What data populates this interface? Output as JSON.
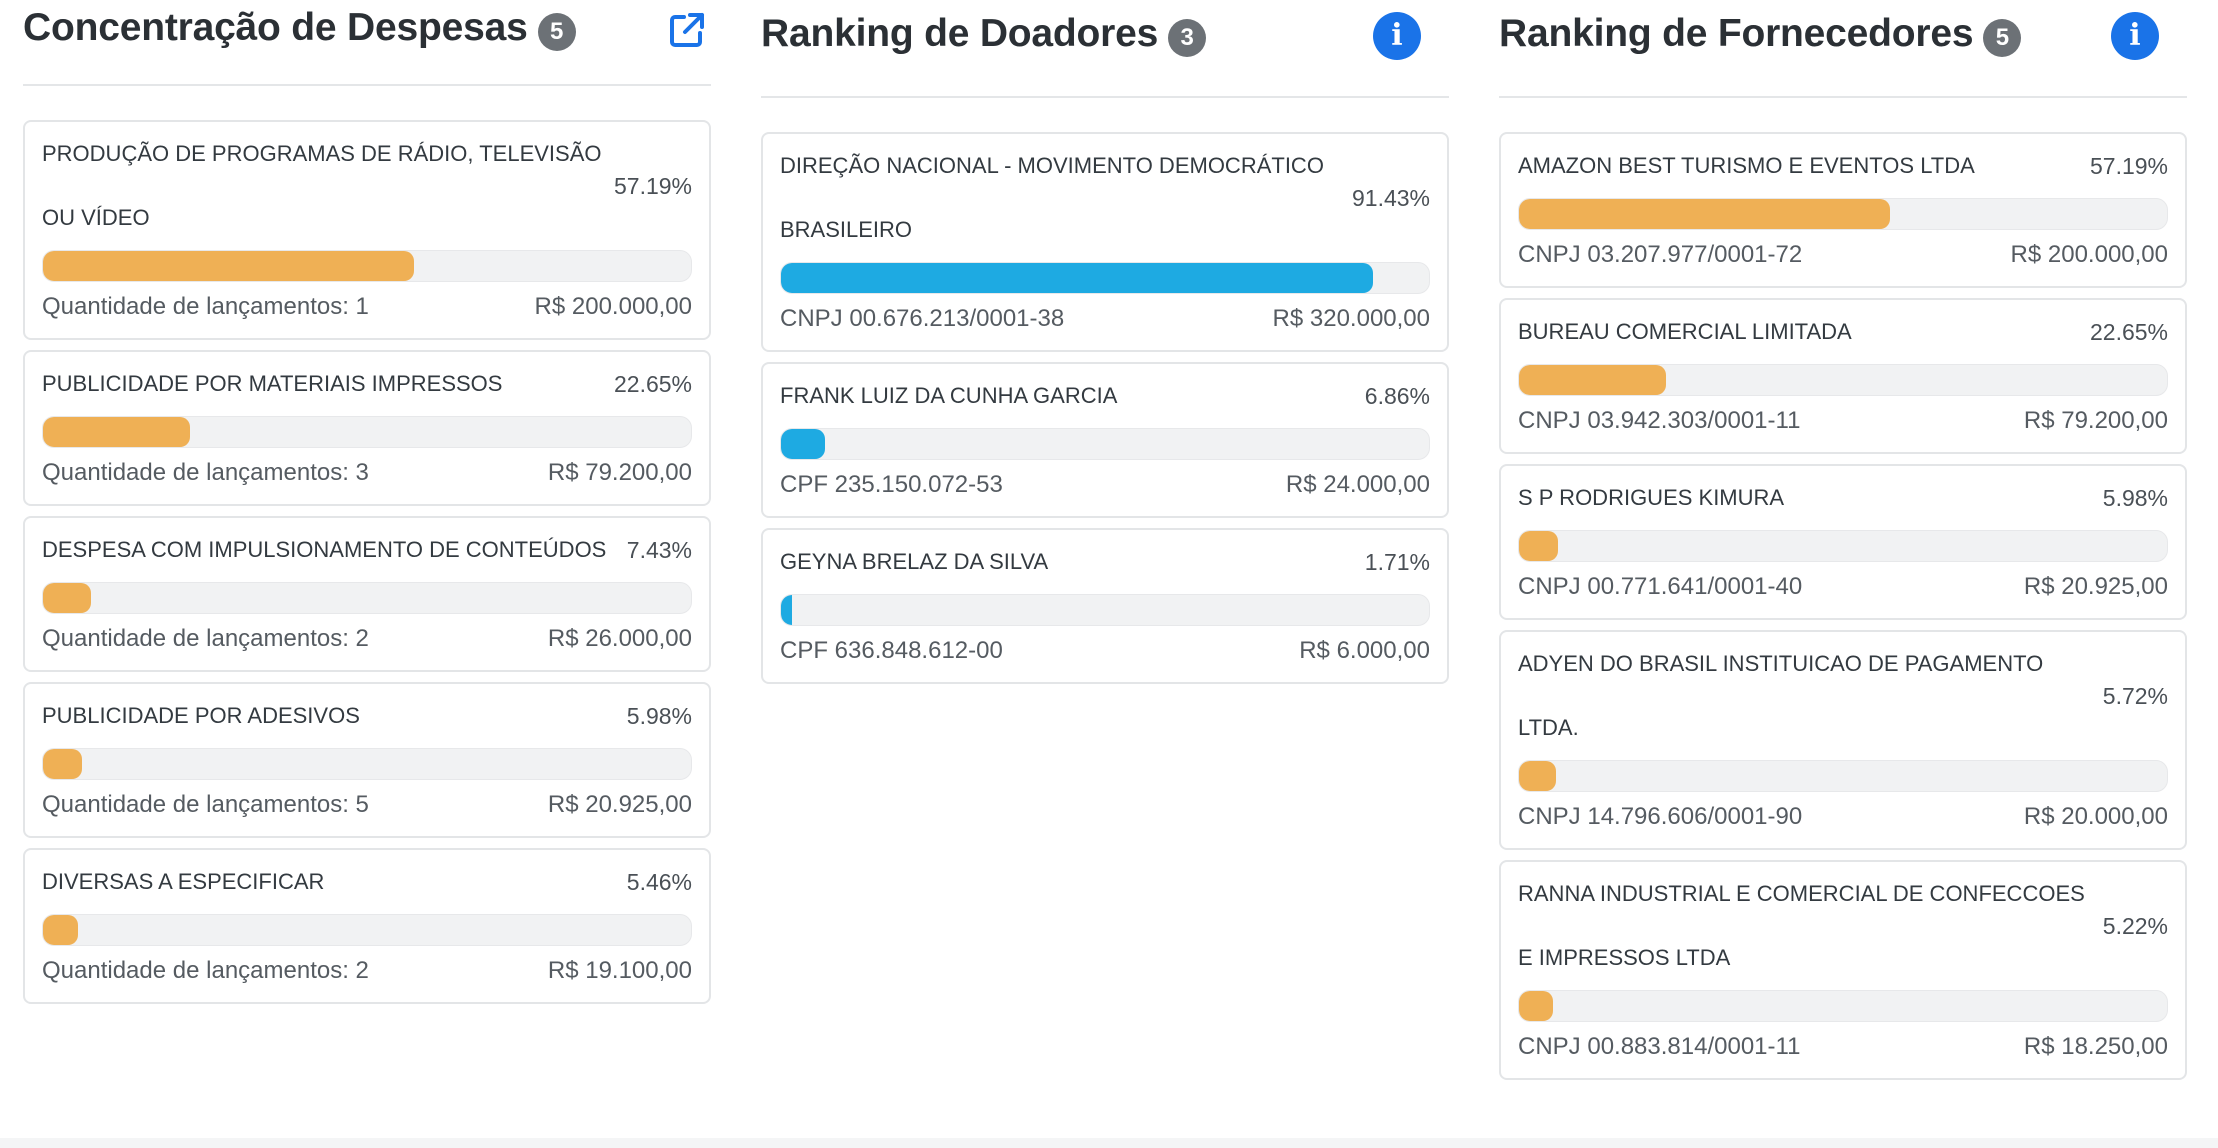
{
  "columns": [
    {
      "title": "Concentração de Despesas",
      "count": "5",
      "icon": "external-link-icon",
      "items": [
        {
          "name": "PRODUÇÃO DE PROGRAMAS DE RÁDIO, TELEVISÃO OU VÍDEO",
          "pct": "57.19%",
          "fraction": 0.5719,
          "left": "Quantidade de lançamentos: 1",
          "right": "R$ 200.000,00"
        },
        {
          "name": "PUBLICIDADE POR MATERIAIS IMPRESSOS",
          "pct": "22.65%",
          "fraction": 0.2265,
          "left": "Quantidade de lançamentos: 3",
          "right": "R$ 79.200,00"
        },
        {
          "name": "DESPESA COM IMPULSIONAMENTO DE CONTEÚDOS",
          "pct": "7.43%",
          "fraction": 0.0743,
          "left": "Quantidade de lançamentos: 2",
          "right": "R$ 26.000,00"
        },
        {
          "name": "PUBLICIDADE POR ADESIVOS",
          "pct": "5.98%",
          "fraction": 0.0598,
          "left": "Quantidade de lançamentos: 5",
          "right": "R$ 20.925,00"
        },
        {
          "name": "DIVERSAS A ESPECIFICAR",
          "pct": "5.46%",
          "fraction": 0.0546,
          "left": "Quantidade de lançamentos: 2",
          "right": "R$ 19.100,00"
        }
      ]
    },
    {
      "title": "Ranking de Doadores",
      "count": "3",
      "icon": "info-icon",
      "items": [
        {
          "name": "DIREÇÃO NACIONAL - MOVIMENTO DEMOCRÁTICO BRASILEIRO",
          "pct": "91.43%",
          "fraction": 0.9143,
          "left": "CNPJ 00.676.213/0001-38",
          "right": "R$ 320.000,00"
        },
        {
          "name": "FRANK LUIZ DA CUNHA GARCIA",
          "pct": "6.86%",
          "fraction": 0.0686,
          "left": "CPF 235.150.072-53",
          "right": "R$ 24.000,00"
        },
        {
          "name": "GEYNA BRELAZ DA SILVA",
          "pct": "1.71%",
          "fraction": 0.0171,
          "left": "CPF 636.848.612-00",
          "right": "R$ 6.000,00"
        }
      ]
    },
    {
      "title": "Ranking de Fornecedores",
      "count": "5",
      "icon": "info-icon",
      "items": [
        {
          "name": "AMAZON BEST TURISMO E EVENTOS LTDA",
          "pct": "57.19%",
          "fraction": 0.5719,
          "left": "CNPJ 03.207.977/0001-72",
          "right": "R$ 200.000,00"
        },
        {
          "name": "BUREAU COMERCIAL LIMITADA",
          "pct": "22.65%",
          "fraction": 0.2265,
          "left": "CNPJ 03.942.303/0001-11",
          "right": "R$ 79.200,00"
        },
        {
          "name": "S P RODRIGUES KIMURA",
          "pct": "5.98%",
          "fraction": 0.0598,
          "left": "CNPJ 00.771.641/0001-40",
          "right": "R$ 20.925,00"
        },
        {
          "name": "ADYEN DO BRASIL INSTITUICAO DE PAGAMENTO LTDA.",
          "pct": "5.72%",
          "fraction": 0.0572,
          "left": "CNPJ 14.796.606/0001-90",
          "right": "R$ 20.000,00"
        },
        {
          "name": "RANNA INDUSTRIAL E COMERCIAL DE CONFECCOES E IMPRESSOS LTDA",
          "pct": "5.22%",
          "fraction": 0.0522,
          "left": "CNPJ 00.883.814/0001-11",
          "right": "R$ 18.250,00"
        }
      ]
    }
  ],
  "colors": {
    "bar_orange": "#efb055",
    "bar_blue": "#1eaae2",
    "info_blue": "#1a73e8",
    "badge_gray": "#6c7176"
  }
}
